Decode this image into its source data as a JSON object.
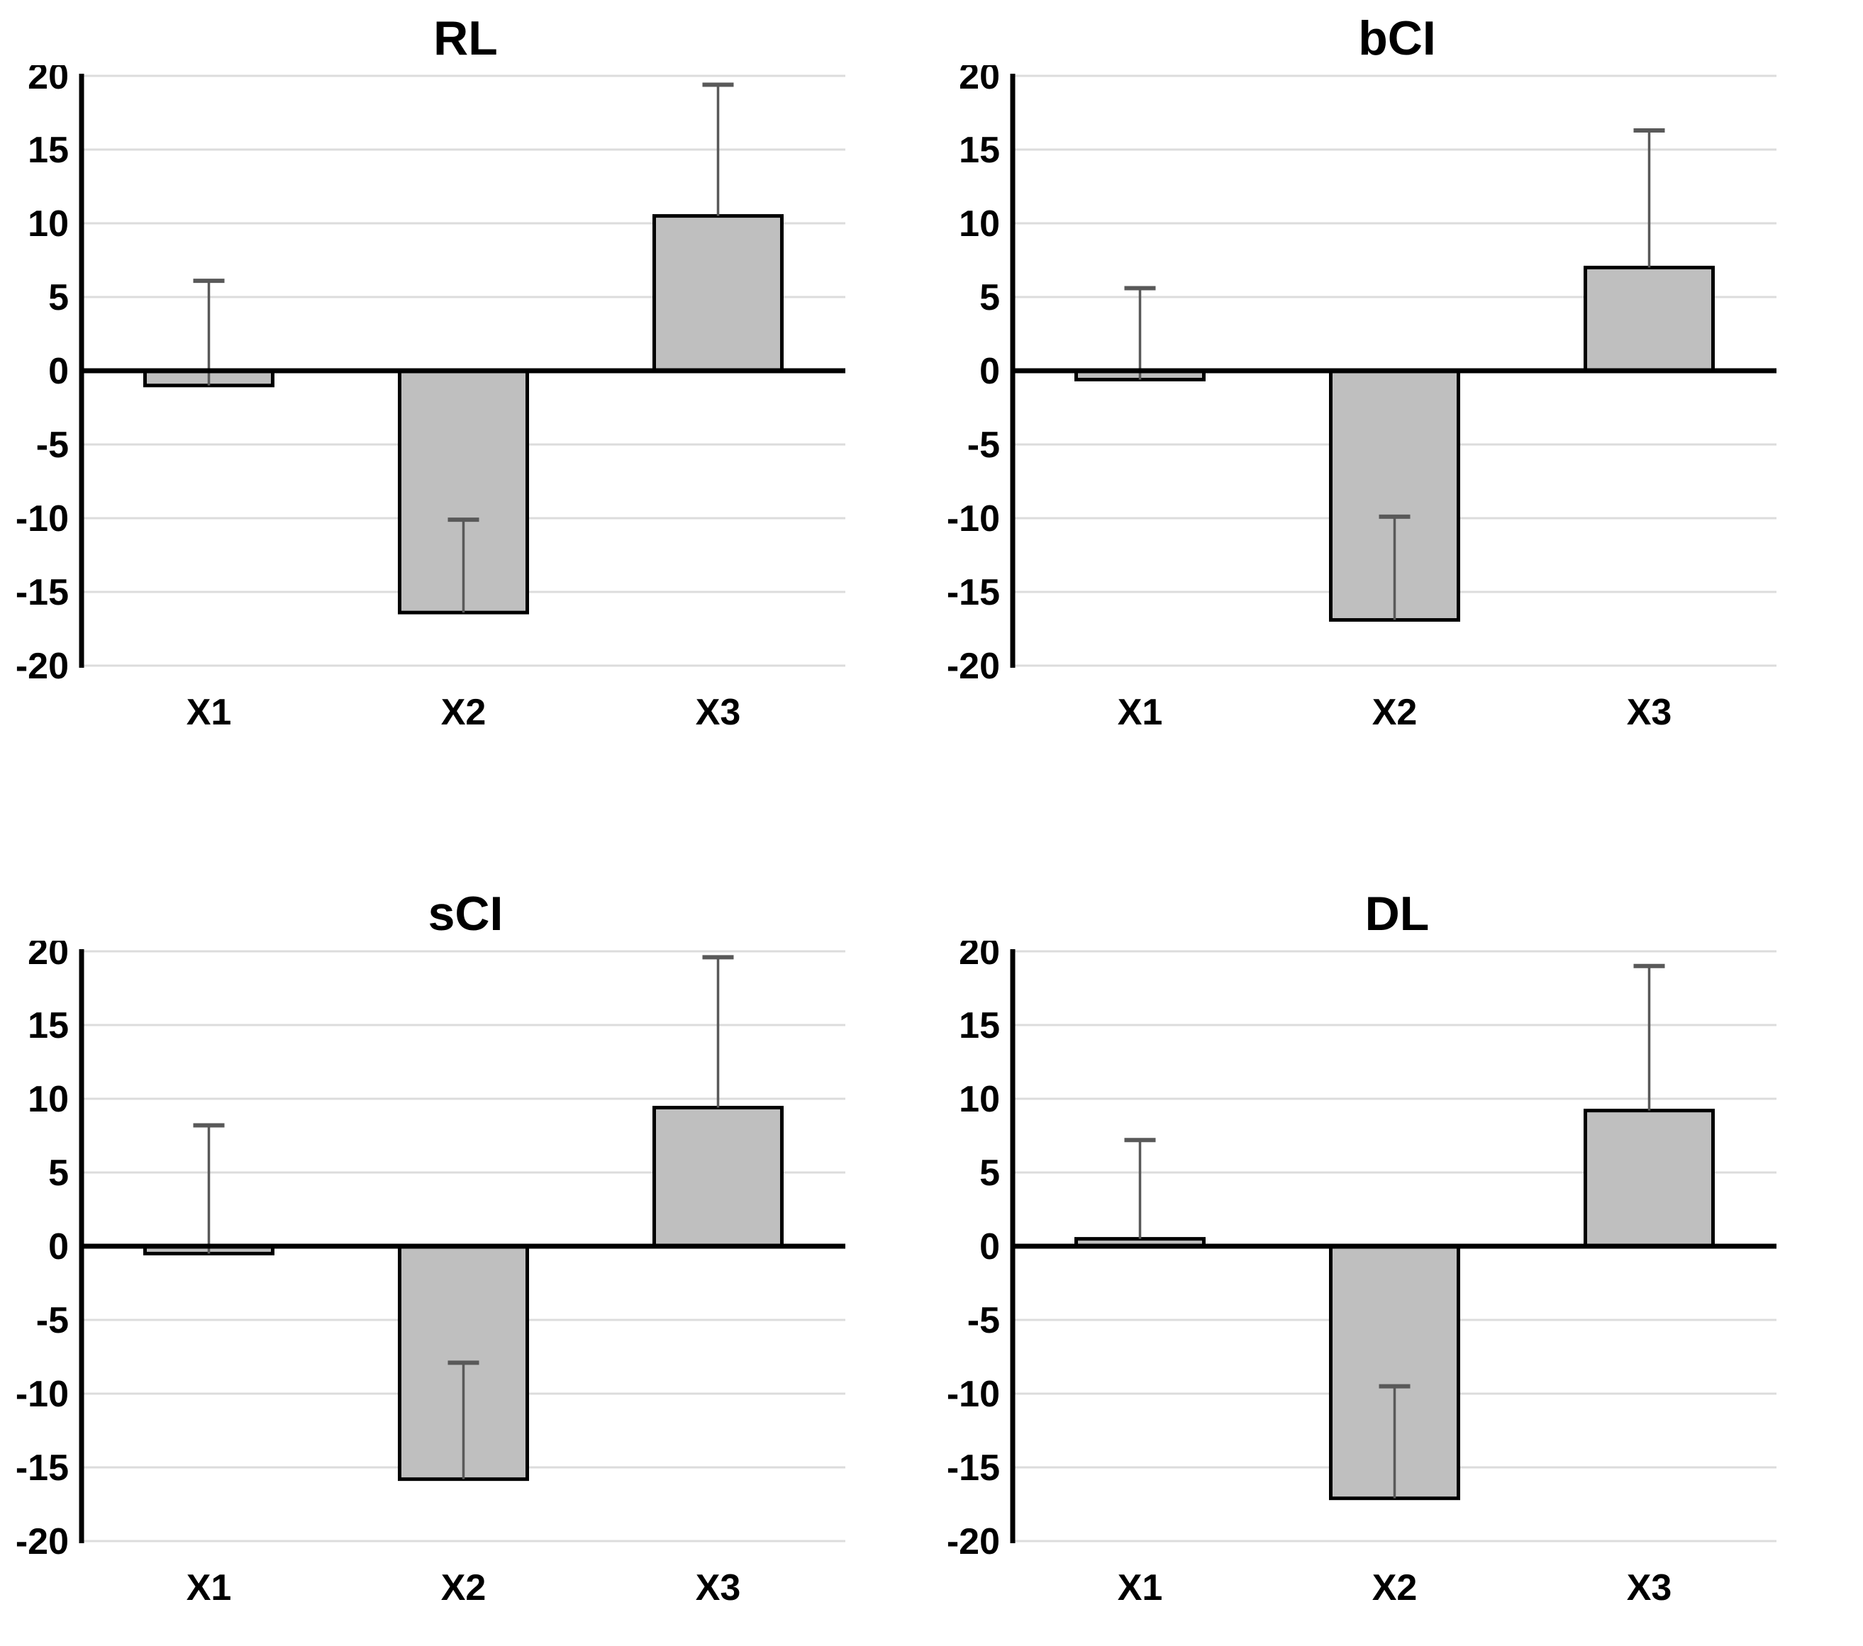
{
  "figure": {
    "background": "#ffffff",
    "layout": "2x2-grid",
    "legend": "none"
  },
  "style": {
    "bar_fill": "#bfbfbf",
    "bar_border": "#000000",
    "gridline_color": "#dcdcdc",
    "axis_color": "#000000",
    "error_bar_color": "#595959",
    "text_color": "#000000"
  },
  "chart_data": [
    {
      "type": "bar",
      "title": "RL",
      "categories": [
        "X1",
        "X2",
        "X3"
      ],
      "values": [
        -1.0,
        -16.4,
        10.5
      ],
      "error_top": [
        6.1,
        -10.1,
        19.4
      ],
      "xlabel": "",
      "ylabel": "",
      "ylim": [
        -20,
        20
      ],
      "ytick_step": 5,
      "yticks": [
        20,
        15,
        10,
        5,
        0,
        -5,
        -10,
        -15,
        -20
      ],
      "grid": true,
      "legend_position": "none"
    },
    {
      "type": "bar",
      "title": "bCI",
      "categories": [
        "X1",
        "X2",
        "X3"
      ],
      "values": [
        -0.6,
        -16.9,
        7.0
      ],
      "error_top": [
        5.6,
        -9.9,
        16.3
      ],
      "xlabel": "",
      "ylabel": "",
      "ylim": [
        -20,
        20
      ],
      "ytick_step": 5,
      "yticks": [
        20,
        15,
        10,
        5,
        0,
        -5,
        -10,
        -15,
        -20
      ],
      "grid": true,
      "legend_position": "none"
    },
    {
      "type": "bar",
      "title": "sCI",
      "categories": [
        "X1",
        "X2",
        "X3"
      ],
      "values": [
        -0.5,
        -15.8,
        9.4
      ],
      "error_top": [
        8.2,
        -7.9,
        19.6
      ],
      "xlabel": "",
      "ylabel": "",
      "ylim": [
        -20,
        20
      ],
      "ytick_step": 5,
      "yticks": [
        20,
        15,
        10,
        5,
        0,
        -5,
        -10,
        -15,
        -20
      ],
      "grid": true,
      "legend_position": "none"
    },
    {
      "type": "bar",
      "title": "DL",
      "categories": [
        "X1",
        "X2",
        "X3"
      ],
      "values": [
        0.5,
        -17.1,
        9.2
      ],
      "error_top": [
        7.2,
        -9.5,
        19.0
      ],
      "xlabel": "",
      "ylabel": "",
      "ylim": [
        -20,
        20
      ],
      "ytick_step": 5,
      "yticks": [
        20,
        15,
        10,
        5,
        0,
        -5,
        -10,
        -15,
        -20
      ],
      "grid": true,
      "legend_position": "none"
    }
  ]
}
